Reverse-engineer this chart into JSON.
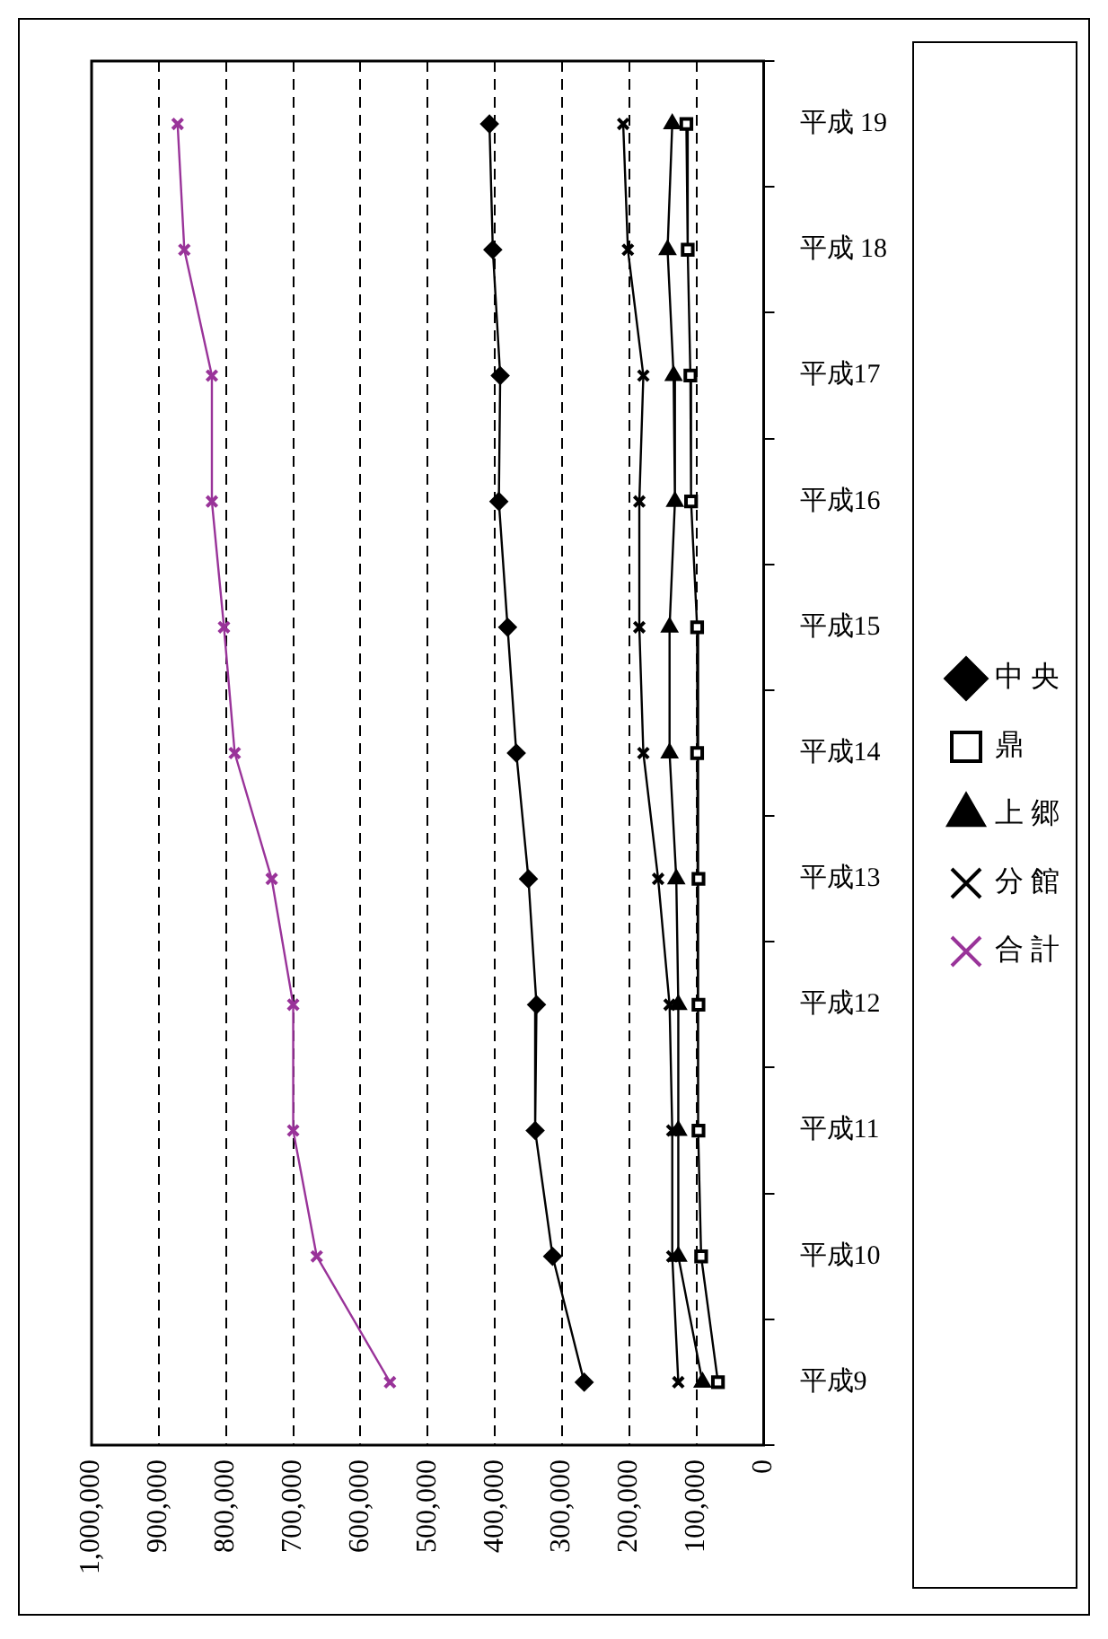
{
  "chart_data": {
    "type": "line",
    "orientation": "horizontal",
    "categories": [
      "平成 19",
      "平成 18",
      "平成17",
      "平成16",
      "平成15",
      "平成14",
      "平成13",
      "平成12",
      "平成11",
      "平成10",
      "平成9"
    ],
    "series": [
      {
        "name": "中 央",
        "color": "#000000",
        "marker": "diamond",
        "values": [
          408000,
          403000,
          392000,
          394000,
          381000,
          368000,
          350000,
          338000,
          340000,
          314000,
          267000
        ]
      },
      {
        "name": "鼎",
        "color": "#000000",
        "marker": "square",
        "values": [
          115000,
          113000,
          109000,
          108000,
          99000,
          99000,
          97000,
          97000,
          97000,
          93000,
          68000
        ]
      },
      {
        "name": "上 郷",
        "color": "#000000",
        "marker": "triangle",
        "values": [
          136000,
          143000,
          134000,
          132000,
          140000,
          140000,
          130000,
          127000,
          127000,
          127000,
          91000
        ]
      },
      {
        "name": "分 館",
        "color": "#000000",
        "marker": "cross",
        "values": [
          209000,
          202000,
          179000,
          185000,
          185000,
          179000,
          157000,
          140000,
          136000,
          136000,
          127000
        ]
      },
      {
        "name": "合 計",
        "color": "#993399",
        "marker": "cross",
        "values": [
          872000,
          862000,
          821000,
          821000,
          803000,
          787000,
          732000,
          700000,
          700000,
          665000,
          556000
        ]
      }
    ],
    "xlim": [
      1000000,
      0
    ],
    "xticks": [
      0,
      {
        "value": 100000,
        "label": "100,000"
      },
      {
        "value": 200000,
        "label": "200,000"
      },
      {
        "value": 300000,
        "label": "300,000"
      },
      {
        "value": 400000,
        "label": "400,000"
      },
      {
        "value": 500000,
        "label": "500,000"
      },
      {
        "value": 600000,
        "label": "600,000"
      },
      {
        "value": 700000,
        "label": "700,000"
      },
      {
        "value": 800000,
        "label": "800,000"
      },
      {
        "value": 900000,
        "label": "900,000"
      },
      {
        "value": 1000000,
        "label": "1,000,000"
      }
    ],
    "grid": "x",
    "legend": "right"
  }
}
